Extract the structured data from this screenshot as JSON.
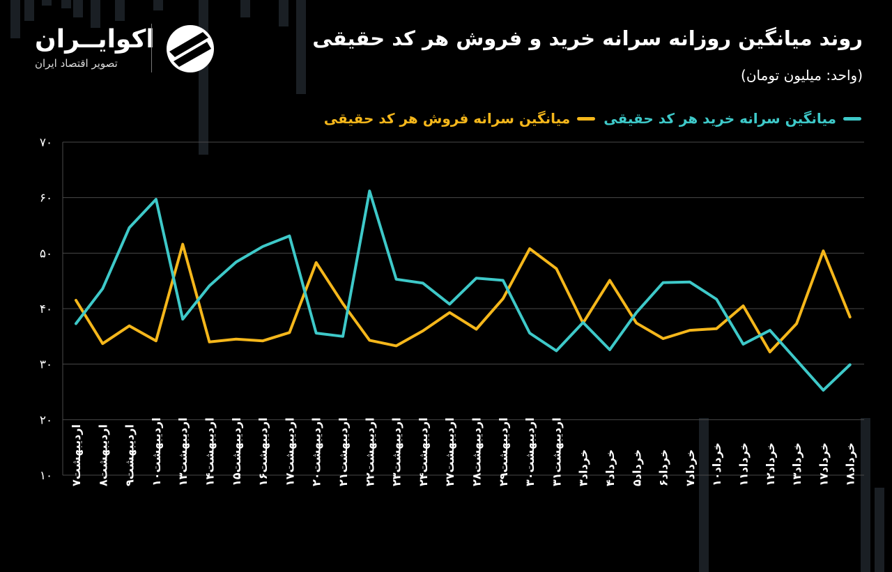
{
  "header": {
    "title": "روند میانگین روزانه سرانه خرید و فروش هر کد حقیقی",
    "unit": "(واحد: میلیون تومان)"
  },
  "logo": {
    "name": "اکوایــران",
    "subtitle": "تصویر اقتصاد ایران"
  },
  "colors": {
    "buy": "#3ec9c9",
    "sell": "#f5b71b",
    "grid": "#4a4a4a",
    "bg": "#000000"
  },
  "chart_data": {
    "type": "line",
    "title": "روند میانگین روزانه سرانه خرید و فروش هر کد حقیقی",
    "ylabel": "(واحد: میلیون تومان)",
    "xlabel": "",
    "ylim": [
      10,
      70
    ],
    "yticks": [
      "۱۰",
      "۲۰",
      "۳۰",
      "۴۰",
      "۵۰",
      "۶۰",
      "۷۰"
    ],
    "grid": true,
    "legend_position": "top-right",
    "categories": [
      "اردیبهشت۷",
      "اردیبهشت۸",
      "اردیبهشت۹",
      "اردیبهشت۱۰",
      "اردیبهشت۱۳",
      "اردیبهشت۱۴",
      "اردیبهشت۱۵",
      "اردیبهشت۱۶",
      "اردیبهشت۱۷",
      "اردیبهشت۲۰",
      "اردیبهشت۲۱",
      "اردیبهشت۲۲",
      "اردیبهشت۲۳",
      "اردیبهشت۲۴",
      "اردیبهشت۲۷",
      "اردیبهشت۲۸",
      "اردیبهشت۲۹",
      "اردیبهشت۳۰",
      "اردیبهشت۳۱",
      "خرداد۳",
      "خرداد۴",
      "خرداد۵",
      "خرداد۶",
      "خرداد۷",
      "خرداد۱۰",
      "خرداد۱۱",
      "خرداد۱۲",
      "خرداد۱۳",
      "خرداد۱۷",
      "خرداد۱۸"
    ],
    "series": [
      {
        "name": "میانگین سرانه خرید هر کد حقیقی",
        "color": "#3ec9c9",
        "values": [
          37.3,
          43.6,
          54.6,
          59.7,
          38.1,
          44.1,
          48.4,
          51.2,
          53.1,
          35.6,
          35.0,
          61.2,
          45.3,
          44.6,
          40.8,
          45.5,
          45.1,
          35.6,
          32.4,
          37.5,
          32.6,
          39.3,
          44.7,
          44.8,
          41.7,
          33.6,
          36.1,
          30.7,
          25.3,
          29.9
        ]
      },
      {
        "name": "میانگین سرانه فروش هر کد حقیقی",
        "color": "#f5b71b",
        "values": [
          41.5,
          33.7,
          36.9,
          34.2,
          51.6,
          34.0,
          34.5,
          34.2,
          35.7,
          48.3,
          40.9,
          34.3,
          33.3,
          36.0,
          39.3,
          36.3,
          41.8,
          50.8,
          47.2,
          37.4,
          45.1,
          37.4,
          34.6,
          36.1,
          36.4,
          40.5,
          32.2,
          37.3,
          50.4,
          38.5
        ]
      }
    ]
  }
}
